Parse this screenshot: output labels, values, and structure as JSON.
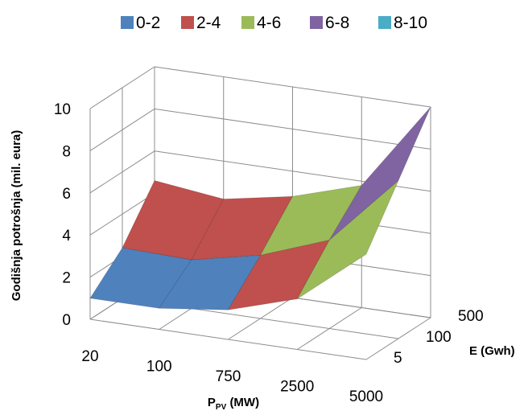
{
  "chart_data": {
    "type": "surface",
    "legend": {
      "position": "top",
      "items": [
        {
          "label": "0-2",
          "color": "#4F81BD"
        },
        {
          "label": "2-4",
          "color": "#C0504D"
        },
        {
          "label": "4-6",
          "color": "#9BBB59"
        },
        {
          "label": "6-8",
          "color": "#8064A2"
        },
        {
          "label": "8-10",
          "color": "#4BACC6"
        }
      ]
    },
    "x_axis": {
      "label": "P",
      "label_subscript": "PV",
      "label_suffix": "(MW)",
      "categories": [
        "20",
        "100",
        "750",
        "2500",
        "5000"
      ]
    },
    "y_axis": {
      "label": "E (Gwh)",
      "categories": [
        "5",
        "100",
        "500"
      ]
    },
    "z_axis": {
      "label": "Godišnja potrošnja (mil. eura)",
      "ticks": [
        "0",
        "2",
        "4",
        "6",
        "8",
        "10"
      ],
      "zlim": [
        0,
        10
      ]
    },
    "grid": true,
    "values": [
      [
        1.0,
        2.4,
        4.6
      ],
      [
        1.0,
        2.3,
        4.2
      ],
      [
        1.4,
        3.0,
        4.8
      ],
      [
        2.4,
        4.2,
        5.8
      ],
      [
        5.0,
        7.5,
        10.0
      ]
    ]
  }
}
